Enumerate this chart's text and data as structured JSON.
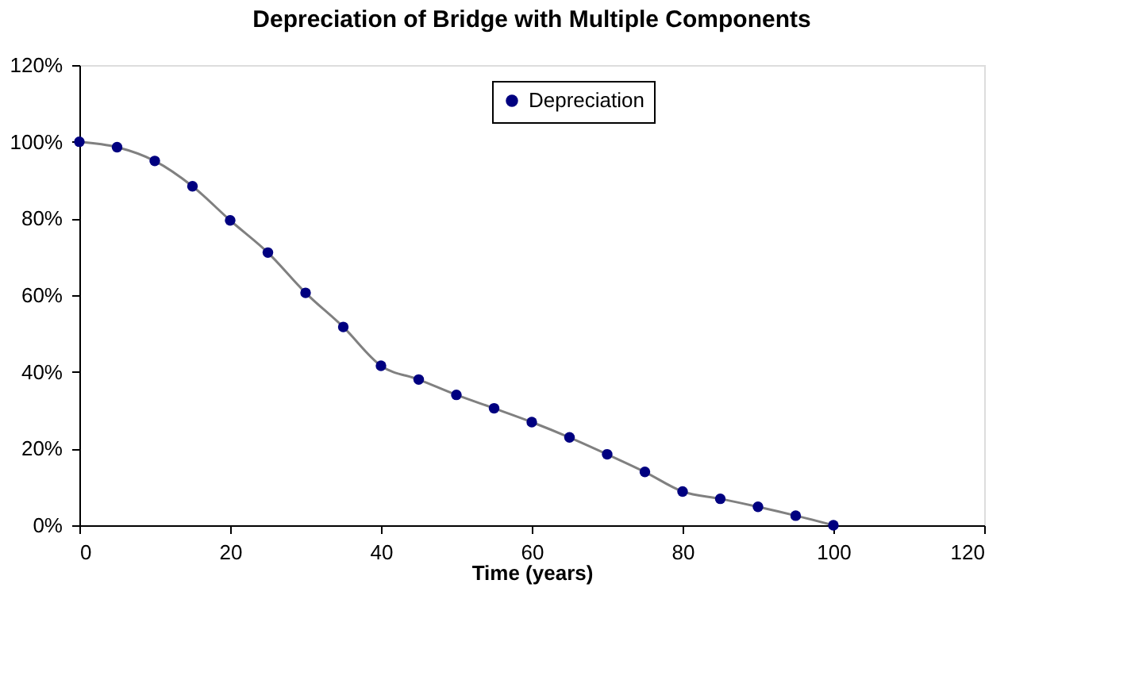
{
  "chart_data": {
    "type": "line",
    "title": "Depreciation of Bridge with Multiple Components",
    "xlabel": "Time (years)",
    "x": [
      0,
      5,
      10,
      15,
      20,
      25,
      30,
      35,
      40,
      45,
      50,
      55,
      60,
      65,
      70,
      75,
      80,
      85,
      90,
      95,
      100
    ],
    "series": [
      {
        "name": "Depreciation",
        "color": "#000080",
        "values": [
          100,
          98.6,
          95,
          88.4,
          79.5,
          71.1,
          60.6,
          51.7,
          41.6,
          38,
          34,
          30.5,
          26.9,
          22.9,
          18.5,
          13.9,
          8.8,
          6.9,
          4.8,
          2.5,
          0
        ]
      }
    ],
    "xlim": [
      0,
      120
    ],
    "xticks": [
      0,
      20,
      40,
      60,
      80,
      100,
      120
    ],
    "ylim": [
      0,
      120
    ],
    "yticks": [
      {
        "value": 0,
        "label": "0%"
      },
      {
        "value": 20,
        "label": "20%"
      },
      {
        "value": 40,
        "label": "40%"
      },
      {
        "value": 60,
        "label": "60%"
      },
      {
        "value": 80,
        "label": "80%"
      },
      {
        "value": 100,
        "label": "100%"
      },
      {
        "value": 120,
        "label": "120%"
      }
    ],
    "marker": "circle",
    "line_style": "solid",
    "grid": false,
    "legend": "top"
  }
}
